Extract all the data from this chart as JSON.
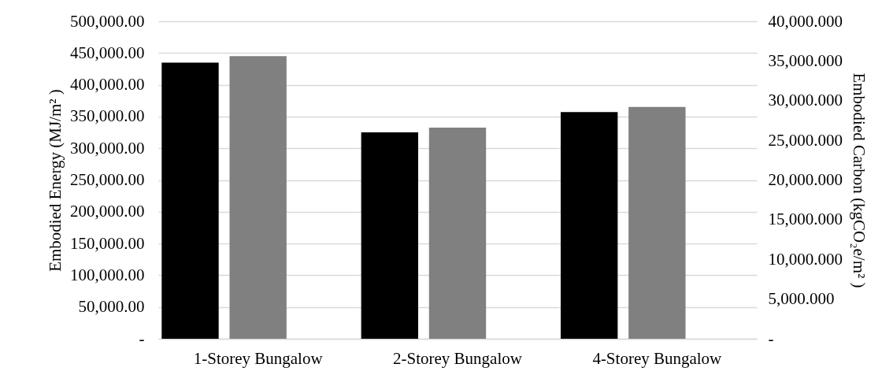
{
  "chart_data": {
    "type": "bar",
    "categories": [
      "1-Storey Bungalow",
      "2-Storey Bungalow",
      "4-Storey Bungalow"
    ],
    "series": [
      {
        "color": "#000000",
        "values": [
          435000,
          325000,
          357000
        ]
      },
      {
        "color": "#808080",
        "values": [
          35600,
          26600,
          29200
        ],
        "axis": "y2"
      }
    ],
    "ylabel": "Embodied Energy (MJ/m² )",
    "y2label": "Embodied Carbon (kgCO₂e/m² )",
    "ylim": [
      0,
      500000
    ],
    "yticks": [
      {
        "value": 0,
        "label": "-"
      },
      {
        "value": 50000,
        "label": "50,000.00"
      },
      {
        "value": 100000,
        "label": "100,000.00"
      },
      {
        "value": 150000,
        "label": "150,000.00"
      },
      {
        "value": 200000,
        "label": "200,000.00"
      },
      {
        "value": 250000,
        "label": "250,000.00"
      },
      {
        "value": 300000,
        "label": "300,000.00"
      },
      {
        "value": 350000,
        "label": "350,000.00"
      },
      {
        "value": 400000,
        "label": "400,000.00"
      },
      {
        "value": 450000,
        "label": "450,000.00"
      },
      {
        "value": 500000,
        "label": "500,000.00"
      }
    ],
    "y2lim": [
      0,
      40000
    ],
    "y2ticks": [
      {
        "value": 0,
        "label": "-"
      },
      {
        "value": 5000,
        "label": "5,000.000"
      },
      {
        "value": 10000,
        "label": "10,000.000"
      },
      {
        "value": 15000,
        "label": "15,000.000"
      },
      {
        "value": 20000,
        "label": "20,000.000"
      },
      {
        "value": 25000,
        "label": "25,000.000"
      },
      {
        "value": 30000,
        "label": "30,000.000"
      },
      {
        "value": 35000,
        "label": "35,000.000"
      },
      {
        "value": 40000,
        "label": "40,000.000"
      }
    ],
    "grid": "y"
  }
}
